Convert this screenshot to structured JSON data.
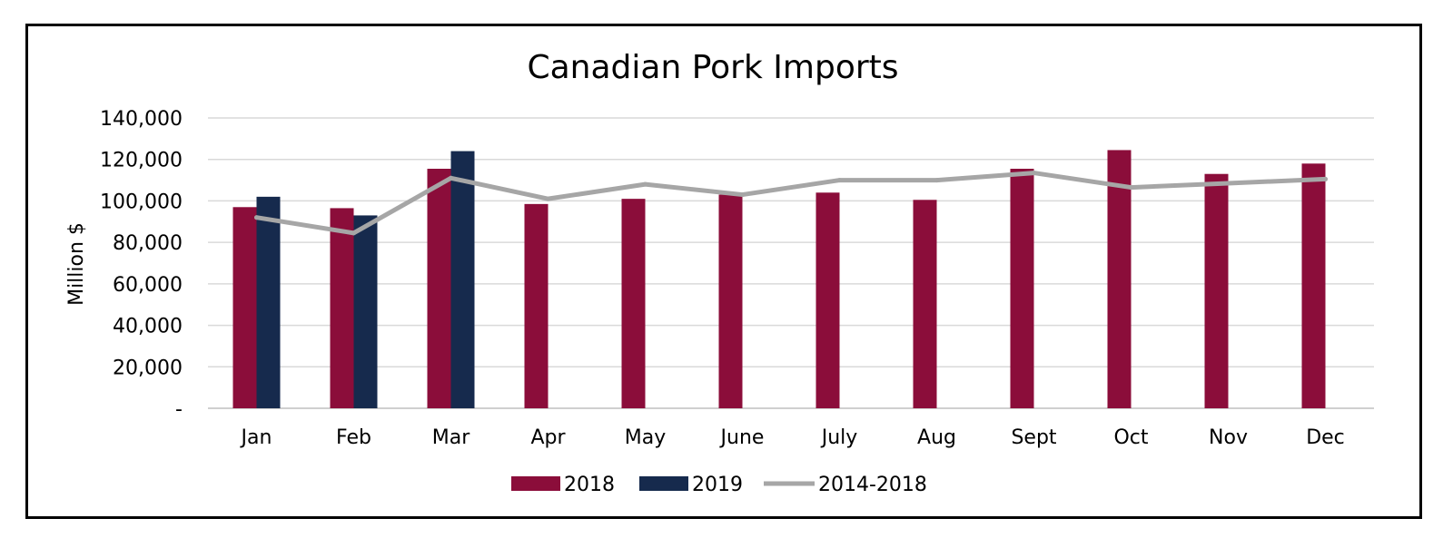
{
  "chart_data": {
    "type": "bar",
    "title": "Canadian Pork Imports",
    "ylabel": "Million $",
    "xlabel": "",
    "categories": [
      "Jan",
      "Feb",
      "Mar",
      "Apr",
      "May",
      "June",
      "July",
      "Aug",
      "Sept",
      "Oct",
      "Nov",
      "Dec"
    ],
    "ylim": [
      0,
      140000
    ],
    "yticks": [
      0,
      20000,
      40000,
      60000,
      80000,
      100000,
      120000,
      140000
    ],
    "ytick_labels": [
      "-",
      "20,000",
      "40,000",
      "60,000",
      "80,000",
      "100,000",
      "120,000",
      "140,000"
    ],
    "grid": true,
    "legend_position": "bottom",
    "series": [
      {
        "name": "2018",
        "kind": "bar",
        "color": "#8b0d3a",
        "values": [
          97000,
          96500,
          115500,
          98500,
          101000,
          103000,
          104000,
          100500,
          115500,
          124500,
          113000,
          118000
        ]
      },
      {
        "name": "2019",
        "kind": "bar",
        "color": "#162a4d",
        "values": [
          102000,
          93000,
          124000,
          null,
          null,
          null,
          null,
          null,
          null,
          null,
          null,
          null
        ]
      },
      {
        "name": "2014-2018",
        "kind": "line",
        "color": "#a6a6a6",
        "values": [
          92000,
          84500,
          111000,
          101000,
          108000,
          103000,
          110000,
          110000,
          113500,
          106500,
          108500,
          110500
        ]
      }
    ]
  }
}
